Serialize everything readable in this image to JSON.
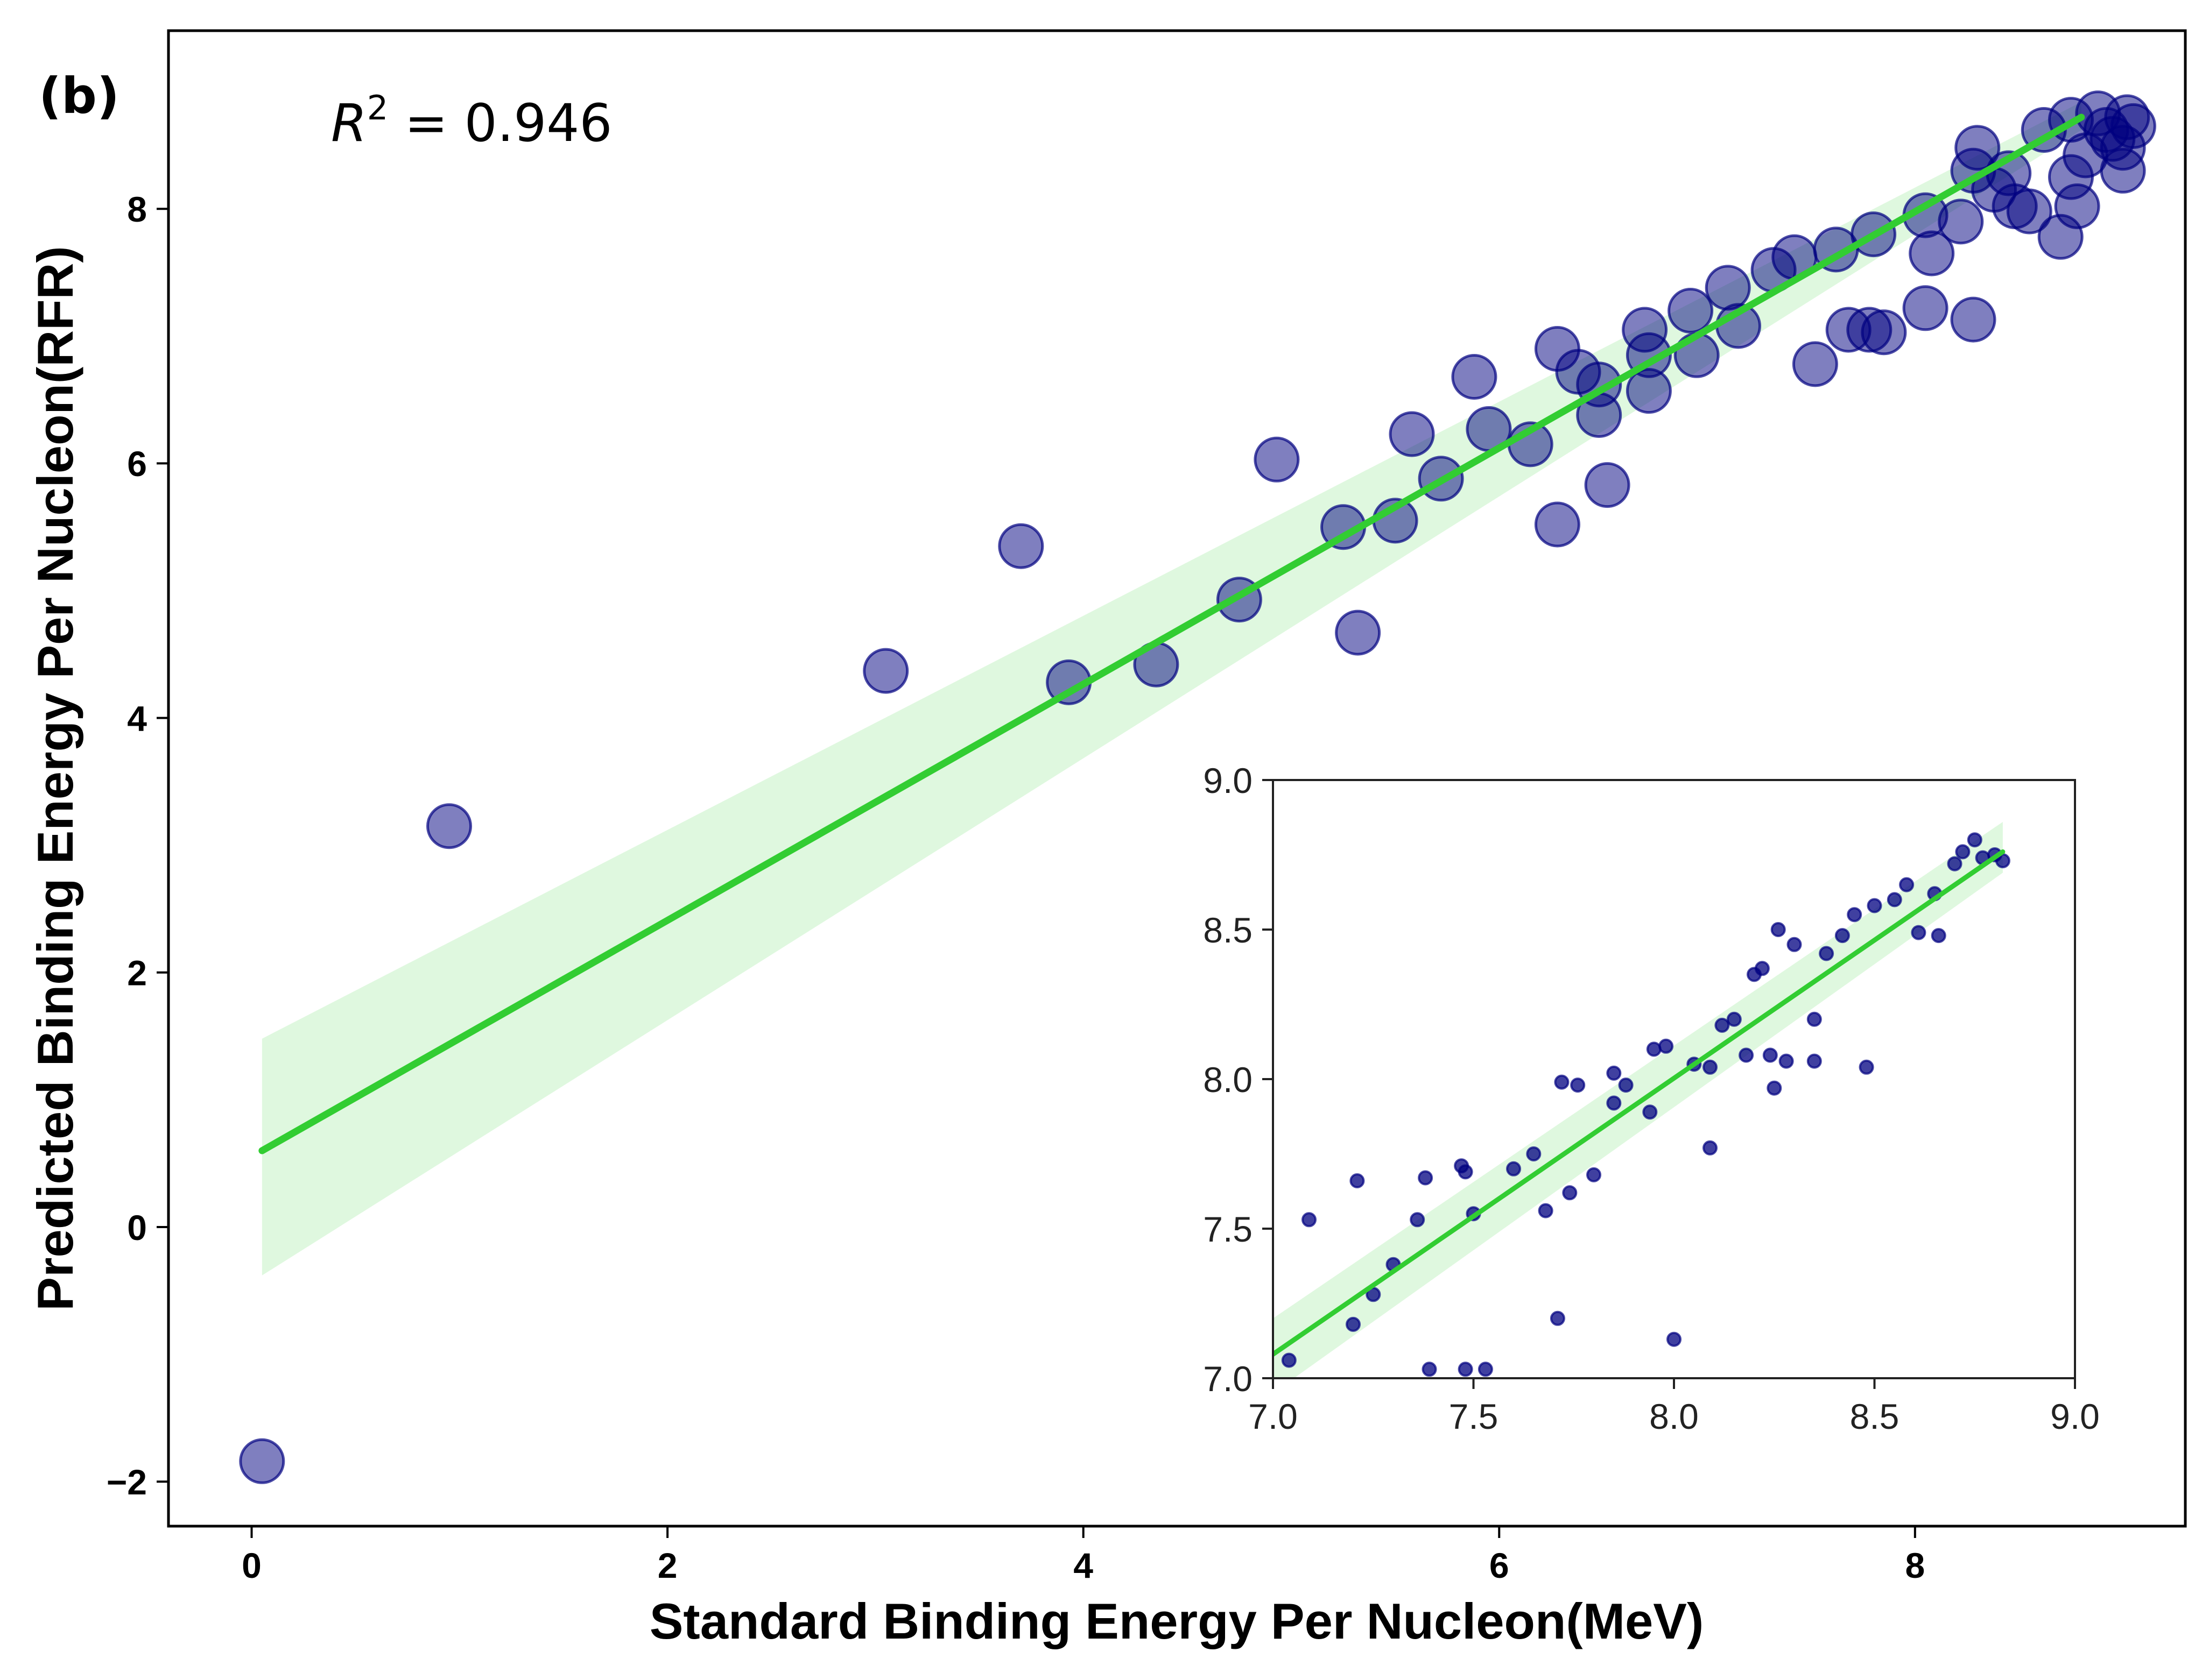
{
  "colors": {
    "points": "#000080",
    "fit_line": "#32cd32",
    "ci_band": "#b9f0b9",
    "axes": "#000000",
    "inset_ticks": "#222222"
  },
  "chart_data": [
    {
      "type": "scatter",
      "panel_label": "(b)",
      "annotation": {
        "prefix": "R",
        "sup": "2",
        "suffix": " = 0.946"
      },
      "xlabel": "Standard Binding Energy Per Nucleon(MeV)",
      "ylabel": "Predicted Binding Energy Per Nucleon(RFR)",
      "xlim": [
        -0.4,
        9.3
      ],
      "ylim": [
        -2.35,
        9.4
      ],
      "xticks": [
        0,
        2,
        4,
        6,
        8
      ],
      "yticks": [
        -2,
        0,
        2,
        4,
        6,
        8
      ],
      "ytick_labels": [
        "−2",
        "0",
        "2",
        "4",
        "6",
        "8"
      ],
      "grid": false,
      "point_color": "#000080",
      "regression": {
        "x": [
          0.05,
          8.8
        ],
        "y": [
          0.6,
          8.72
        ],
        "ci_low": [
          -0.38,
          8.62
        ],
        "ci_high": [
          1.48,
          8.84
        ]
      },
      "points": [
        [
          0.05,
          -1.84
        ],
        [
          0.95,
          3.15
        ],
        [
          3.05,
          4.37
        ],
        [
          3.7,
          5.35
        ],
        [
          3.93,
          4.28
        ],
        [
          4.35,
          4.42
        ],
        [
          4.75,
          4.93
        ],
        [
          4.93,
          6.03
        ],
        [
          5.25,
          5.5
        ],
        [
          5.32,
          4.67
        ],
        [
          5.5,
          5.55
        ],
        [
          5.58,
          6.23
        ],
        [
          5.72,
          5.88
        ],
        [
          5.88,
          6.68
        ],
        [
          5.95,
          6.27
        ],
        [
          6.15,
          6.15
        ],
        [
          6.28,
          6.9
        ],
        [
          6.28,
          5.52
        ],
        [
          6.38,
          6.72
        ],
        [
          6.48,
          6.62
        ],
        [
          6.48,
          6.38
        ],
        [
          6.52,
          5.83
        ],
        [
          6.7,
          7.05
        ],
        [
          6.72,
          6.85
        ],
        [
          6.72,
          6.57
        ],
        [
          6.92,
          7.2
        ],
        [
          6.95,
          6.85
        ],
        [
          7.1,
          7.38
        ],
        [
          7.15,
          7.08
        ],
        [
          7.32,
          7.52
        ],
        [
          7.42,
          7.62
        ],
        [
          7.62,
          7.68
        ],
        [
          7.8,
          7.8
        ],
        [
          8.05,
          7.95
        ],
        [
          7.52,
          6.78
        ],
        [
          7.68,
          7.05
        ],
        [
          7.78,
          7.05
        ],
        [
          7.85,
          7.03
        ],
        [
          8.05,
          7.22
        ],
        [
          8.28,
          7.13
        ],
        [
          8.08,
          7.65
        ],
        [
          8.22,
          7.9
        ],
        [
          8.28,
          8.3
        ],
        [
          8.3,
          8.48
        ],
        [
          8.38,
          8.15
        ],
        [
          8.45,
          8.28
        ],
        [
          8.48,
          8.02
        ],
        [
          8.55,
          7.98
        ],
        [
          8.7,
          7.78
        ],
        [
          8.75,
          8.25
        ],
        [
          8.78,
          8.02
        ],
        [
          8.82,
          8.42
        ],
        [
          8.95,
          8.55
        ],
        [
          9.0,
          8.3
        ],
        [
          8.62,
          8.62
        ],
        [
          8.75,
          8.7
        ],
        [
          8.88,
          8.75
        ],
        [
          9.02,
          8.72
        ],
        [
          9.05,
          8.65
        ],
        [
          9.0,
          8.48
        ],
        [
          8.92,
          8.62
        ]
      ]
    },
    {
      "type": "scatter",
      "xlim": [
        7.0,
        9.0
      ],
      "ylim": [
        7.0,
        9.0
      ],
      "xticks": [
        7.0,
        7.5,
        8.0,
        8.5,
        9.0
      ],
      "yticks": [
        7.0,
        7.5,
        8.0,
        8.5,
        9.0
      ],
      "xtick_labels": [
        "7.0",
        "7.5",
        "8.0",
        "8.5",
        "9.0"
      ],
      "ytick_labels": [
        "7.0",
        "7.5",
        "8.0",
        "8.5",
        "9.0"
      ],
      "grid": false,
      "point_color": "#000080",
      "regression": {
        "x": [
          7.0,
          8.82
        ],
        "y": [
          7.08,
          8.76
        ],
        "ci_low": [
          6.95,
          8.69
        ],
        "ci_high": [
          7.2,
          8.86
        ]
      },
      "points": [
        [
          7.04,
          7.06
        ],
        [
          7.09,
          7.53
        ],
        [
          7.21,
          7.66
        ],
        [
          7.39,
          7.03
        ],
        [
          7.38,
          7.67
        ],
        [
          7.48,
          7.03
        ],
        [
          7.53,
          7.03
        ],
        [
          7.47,
          7.71
        ],
        [
          7.48,
          7.69
        ],
        [
          7.36,
          7.53
        ],
        [
          7.71,
          7.2
        ],
        [
          7.72,
          7.99
        ],
        [
          7.76,
          7.98
        ],
        [
          7.68,
          7.56
        ],
        [
          7.74,
          7.62
        ],
        [
          7.8,
          7.68
        ],
        [
          7.94,
          7.89
        ],
        [
          8.09,
          8.04
        ],
        [
          8.0,
          7.13
        ],
        [
          8.09,
          7.77
        ],
        [
          8.24,
          8.08
        ],
        [
          8.25,
          7.97
        ],
        [
          8.35,
          8.06
        ],
        [
          8.26,
          8.5
        ],
        [
          8.28,
          8.06
        ],
        [
          8.48,
          8.04
        ],
        [
          8.35,
          8.2
        ],
        [
          8.61,
          8.49
        ],
        [
          8.66,
          8.48
        ],
        [
          8.7,
          8.72
        ],
        [
          8.77,
          8.74
        ],
        [
          8.72,
          8.76
        ],
        [
          8.8,
          8.75
        ],
        [
          8.82,
          8.73
        ],
        [
          8.2,
          8.35
        ],
        [
          8.22,
          8.37
        ],
        [
          8.3,
          8.45
        ],
        [
          8.42,
          8.48
        ],
        [
          8.45,
          8.55
        ],
        [
          8.5,
          8.58
        ],
        [
          8.55,
          8.6
        ],
        [
          7.88,
          7.98
        ],
        [
          7.95,
          8.1
        ],
        [
          7.98,
          8.11
        ],
        [
          7.85,
          8.02
        ],
        [
          8.05,
          8.05
        ],
        [
          8.15,
          8.2
        ],
        [
          8.38,
          8.42
        ],
        [
          7.6,
          7.7
        ],
        [
          7.65,
          7.75
        ],
        [
          7.5,
          7.55
        ],
        [
          7.3,
          7.38
        ],
        [
          7.25,
          7.28
        ],
        [
          7.2,
          7.18
        ],
        [
          7.85,
          7.92
        ],
        [
          8.58,
          8.65
        ],
        [
          8.65,
          8.62
        ],
        [
          8.75,
          8.8
        ],
        [
          8.12,
          8.18
        ],
        [
          8.18,
          8.08
        ]
      ]
    }
  ]
}
